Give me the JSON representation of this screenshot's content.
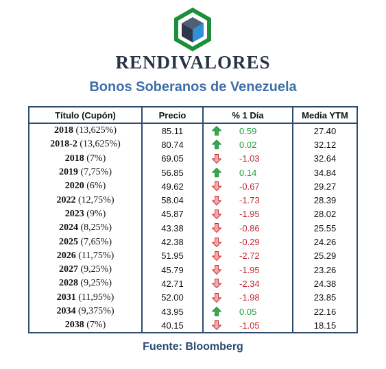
{
  "brand": "RENDIVALORES",
  "title": "Bonos Soberanos de Venezuela",
  "headers": [
    "Título (Cupón)",
    "Precio",
    "% 1 Día",
    "Media YTM"
  ],
  "rows": [
    {
      "year": "2018",
      "coupon": "(13,625%)",
      "price": "85.11",
      "change": "0.59",
      "direction": "up",
      "ytm": "27.40"
    },
    {
      "year": "2018-2",
      "coupon": "(13,625%)",
      "price": "80.74",
      "change": "0.02",
      "direction": "up",
      "ytm": "32.12"
    },
    {
      "year": "2018",
      "coupon": "(7%)",
      "price": "69.05",
      "change": "-1.03",
      "direction": "down",
      "ytm": "32.64"
    },
    {
      "year": "2019",
      "coupon": "(7,75%)",
      "price": "56.85",
      "change": "0.14",
      "direction": "up",
      "ytm": "34.84"
    },
    {
      "year": "2020",
      "coupon": "(6%)",
      "price": "49.62",
      "change": "-0.67",
      "direction": "down",
      "ytm": "29.27"
    },
    {
      "year": "2022",
      "coupon": "(12,75%)",
      "price": "58.04",
      "change": "-1.73",
      "direction": "down",
      "ytm": "28.39"
    },
    {
      "year": "2023",
      "coupon": "(9%)",
      "price": "45.87",
      "change": "-1.95",
      "direction": "down",
      "ytm": "28.02"
    },
    {
      "year": "2024",
      "coupon": "(8,25%)",
      "price": "43.38",
      "change": "-0.86",
      "direction": "down",
      "ytm": "25.55"
    },
    {
      "year": "2025",
      "coupon": "(7,65%)",
      "price": "42.38",
      "change": "-0.29",
      "direction": "down",
      "ytm": "24.26"
    },
    {
      "year": "2026",
      "coupon": "(11,75%)",
      "price": "51.95",
      "change": "-2.72",
      "direction": "down",
      "ytm": "25.29"
    },
    {
      "year": "2027",
      "coupon": "(9,25%)",
      "price": "45.79",
      "change": "-1.95",
      "direction": "down",
      "ytm": "23.26"
    },
    {
      "year": "2028",
      "coupon": "(9,25%)",
      "price": "42.71",
      "change": "-2.34",
      "direction": "down",
      "ytm": "24.38"
    },
    {
      "year": "2031",
      "coupon": "(11,95%)",
      "price": "52.00",
      "change": "-1.98",
      "direction": "down",
      "ytm": "23.85"
    },
    {
      "year": "2034",
      "coupon": "(9,375%)",
      "price": "43.95",
      "change": "0.05",
      "direction": "up",
      "ytm": "22.16"
    },
    {
      "year": "2038",
      "coupon": "(7%)",
      "price": "40.15",
      "change": "-1.05",
      "direction": "down",
      "ytm": "18.15"
    }
  ],
  "source": "Fuente: Bloomberg",
  "colors": {
    "up": "#1e9e3a",
    "down": "#c0272d",
    "brand": "#2a3346",
    "title": "#3f6fa8",
    "border": "#2e4a70"
  },
  "icons": {
    "up": "green-up-arrow-icon",
    "down": "red-down-arrow-icon",
    "logo": "cube-logo-icon"
  }
}
